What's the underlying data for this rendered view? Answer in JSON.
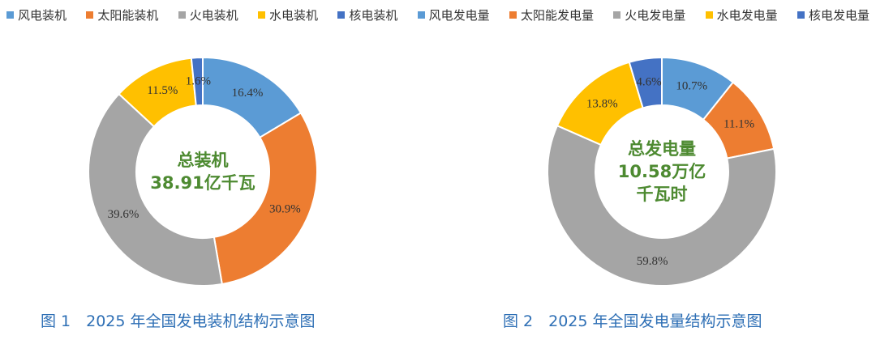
{
  "legend": [
    {
      "label": "风电装机",
      "color": "#5b9bd5"
    },
    {
      "label": "太阳能装机",
      "color": "#ed7d31"
    },
    {
      "label": "火电装机",
      "color": "#a5a5a5"
    },
    {
      "label": "水电装机",
      "color": "#ffc000"
    },
    {
      "label": "核电装机",
      "color": "#4472c4"
    },
    {
      "label": "风电发电量",
      "color": "#5b9bd5"
    },
    {
      "label": "太阳能发电量",
      "color": "#ed7d31"
    },
    {
      "label": "火电发电量",
      "color": "#a5a5a5"
    },
    {
      "label": "水电发电量",
      "color": "#ffc000"
    },
    {
      "label": "核电发电量",
      "color": "#4472c4"
    }
  ],
  "chart_data": [
    {
      "type": "pie",
      "donut": true,
      "center_lines": [
        "总装机",
        "38.91亿千瓦"
      ],
      "caption": "图 1　2025 年全国发电装机结构示意图",
      "series": [
        {
          "name": "风电装机",
          "value": 16.4,
          "label": "16.4%",
          "color": "#5b9bd5"
        },
        {
          "name": "太阳能装机",
          "value": 30.9,
          "label": "30.9%",
          "color": "#ed7d31"
        },
        {
          "name": "火电装机",
          "value": 39.6,
          "label": "39.6%",
          "color": "#a5a5a5"
        },
        {
          "name": "水电装机",
          "value": 11.5,
          "label": "11.5%",
          "color": "#ffc000"
        },
        {
          "name": "核电装机",
          "value": 1.6,
          "label": "1.6%",
          "color": "#4472c4"
        }
      ]
    },
    {
      "type": "pie",
      "donut": true,
      "center_lines": [
        "总发电量",
        "10.58万亿",
        "千瓦时"
      ],
      "caption": "图 2　2025 年全国发电量结构示意图",
      "series": [
        {
          "name": "风电发电量",
          "value": 10.7,
          "label": "10.7%",
          "color": "#5b9bd5"
        },
        {
          "name": "太阳能发电量",
          "value": 11.1,
          "label": "11.1%",
          "color": "#ed7d31"
        },
        {
          "name": "火电发电量",
          "value": 59.8,
          "label": "59.8%",
          "color": "#a5a5a5"
        },
        {
          "name": "水电发电量",
          "value": 13.8,
          "label": "13.8%",
          "color": "#ffc000"
        },
        {
          "name": "核电发电量",
          "value": 4.6,
          "label": "4.6%",
          "color": "#4472c4"
        }
      ]
    }
  ]
}
